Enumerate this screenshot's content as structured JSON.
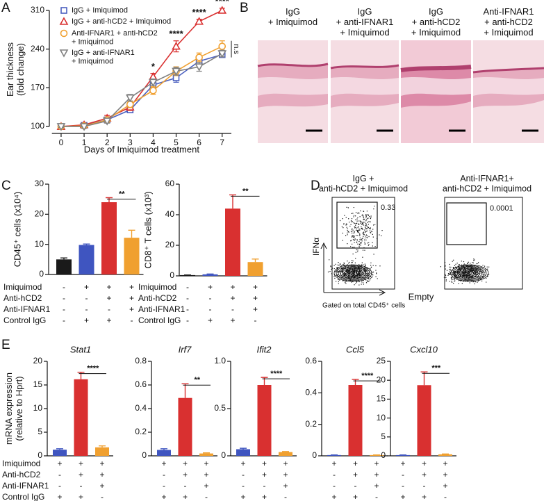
{
  "panel_labels": [
    "A",
    "B",
    "C",
    "D",
    "E"
  ],
  "chart_data": [
    {
      "type": "line",
      "xlabel": "Days of Imiquimod treatment",
      "ylabel": "Ear thickness\n(fold change)",
      "x": [
        0,
        1,
        2,
        3,
        4,
        5,
        6,
        7
      ],
      "xlim": [
        -0.4,
        7.4
      ],
      "xticks": [
        0,
        1,
        2,
        3,
        4,
        5,
        6,
        7
      ],
      "ylim": [
        95,
        315
      ],
      "yticks": [
        100,
        170,
        240,
        310
      ],
      "series": [
        {
          "name": "IgG + Imiquimod",
          "color": "#4a5fbf",
          "marker": "square",
          "values": [
            100,
            102,
            112,
            130,
            175,
            188,
            218,
            230
          ],
          "errors": [
            2,
            3,
            4,
            5,
            6,
            8,
            5,
            5
          ]
        },
        {
          "name": "IgG + anti-hCD2 + Imiquimod",
          "color": "#d93030",
          "marker": "triangle",
          "values": [
            100,
            103,
            115,
            135,
            190,
            245,
            290,
            310
          ],
          "errors": [
            2,
            3,
            5,
            6,
            6,
            10,
            4,
            4
          ]
        },
        {
          "name": "Anti-IFNAR1 + anti-hCD2\n+ Imiquimod",
          "color": "#f0a030",
          "marker": "circle",
          "values": [
            100,
            101,
            112,
            140,
            165,
            200,
            225,
            245
          ],
          "errors": [
            2,
            3,
            4,
            6,
            7,
            8,
            8,
            10
          ]
        },
        {
          "name": "IgG + anti-IFNAR1\n+ Imiquimod",
          "color": "#808080",
          "marker": "triangle-down",
          "values": [
            100,
            100,
            110,
            152,
            180,
            200,
            208,
            232
          ],
          "errors": [
            2,
            3,
            4,
            6,
            6,
            7,
            8,
            6
          ]
        }
      ],
      "annotations": [
        {
          "x": 4,
          "text": "*"
        },
        {
          "x": 5,
          "text": "****"
        },
        {
          "x": 6,
          "text": "****"
        },
        {
          "x": 7,
          "text": "****"
        }
      ],
      "side_annotation": "n.s"
    },
    {
      "type": "bar",
      "ylabel": "CD45⁺ cells (x10⁴)",
      "ylim": [
        0,
        30
      ],
      "yticks": [
        0,
        10,
        20,
        30
      ],
      "values": [
        5,
        9.8,
        24,
        12.2
      ],
      "errors": [
        0.5,
        0.3,
        1.5,
        2.5
      ],
      "colors": [
        "#1a1a1a",
        "#3f55c0",
        "#d93030",
        "#f0a030"
      ],
      "significance": "**",
      "treatment_rows": [
        "Imiquimod",
        "Anti-hCD2",
        "Anti-IFNAR1",
        "Control IgG"
      ],
      "treatment_signs": [
        [
          "-",
          "+",
          "+",
          "+"
        ],
        [
          "-",
          "-",
          "+",
          "+"
        ],
        [
          "-",
          "-",
          "-",
          "+"
        ],
        [
          "-",
          "+",
          "+",
          "-"
        ]
      ]
    },
    {
      "type": "bar",
      "ylabel": "CD8⁺ T cells (x10³)",
      "ylim": [
        0,
        60
      ],
      "yticks": [
        0,
        20,
        40,
        60
      ],
      "values": [
        0.5,
        1,
        44,
        9
      ],
      "errors": [
        0.1,
        0.2,
        9,
        2
      ],
      "colors": [
        "#1a1a1a",
        "#3f55c0",
        "#d93030",
        "#f0a030"
      ],
      "significance": "**",
      "treatment_rows": [
        "Imiquimod",
        "Anti-hCD2",
        "Anti-IFNAR1",
        "Control IgG"
      ],
      "treatment_signs": [
        [
          "-",
          "+",
          "+",
          "+"
        ],
        [
          "-",
          "-",
          "+",
          "+"
        ],
        [
          "-",
          "-",
          "-",
          "+"
        ],
        [
          "-",
          "+",
          "+",
          "-"
        ]
      ]
    },
    {
      "type": "bar",
      "title": "Stat1",
      "ylabel": "mRNA expression\n(relative to Hprt)",
      "ylim": [
        0,
        20
      ],
      "yticks": [
        0,
        5,
        10,
        15,
        20
      ],
      "values": [
        1.3,
        16.2,
        1.8
      ],
      "errors": [
        0.2,
        1.5,
        0.3
      ],
      "colors": [
        "#3f55c0",
        "#d93030",
        "#f0a030"
      ],
      "significance": "****",
      "treatment_rows": [
        "Imiquimod",
        "Anti-hCD2",
        "Anti-IFNAR1",
        "Control IgG"
      ],
      "treatment_signs": [
        [
          "+",
          "+",
          "+"
        ],
        [
          "-",
          "+",
          "+"
        ],
        [
          "-",
          "-",
          "+"
        ],
        [
          "+",
          "+",
          "-"
        ]
      ]
    },
    {
      "type": "bar",
      "title": "Irf7",
      "ylim": [
        0,
        0.8
      ],
      "yticks": [
        0,
        0.2,
        0.4,
        0.6,
        0.8
      ],
      "values": [
        0.05,
        0.49,
        0.02
      ],
      "errors": [
        0.01,
        0.12,
        0.005
      ],
      "colors": [
        "#3f55c0",
        "#d93030",
        "#f0a030"
      ],
      "significance": "**",
      "treatment_signs": [
        [
          "+",
          "+",
          "+"
        ],
        [
          "-",
          "+",
          "+"
        ],
        [
          "-",
          "-",
          "+"
        ],
        [
          "+",
          "+",
          "-"
        ]
      ]
    },
    {
      "type": "bar",
      "title": "Ifit2",
      "ylim": [
        0,
        1
      ],
      "yticks": [
        0,
        0.5,
        {
          "value": 1,
          "label": "1.0"
        }
      ],
      "values": [
        0.07,
        0.75,
        0.04
      ],
      "errors": [
        0.01,
        0.08,
        0.005
      ],
      "colors": [
        "#3f55c0",
        "#d93030",
        "#f0a030"
      ],
      "significance": "****",
      "treatment_signs": [
        [
          "+",
          "+",
          "+"
        ],
        [
          "-",
          "+",
          "+"
        ],
        [
          "-",
          "-",
          "+"
        ],
        [
          "+",
          "+",
          "-"
        ]
      ]
    },
    {
      "type": "bar",
      "title": "Ccl5",
      "ylim": [
        0,
        0.6
      ],
      "yticks": [
        0,
        0.2,
        0.4,
        0.6
      ],
      "values": [
        0.005,
        0.45,
        0.005
      ],
      "errors": [
        0.001,
        0.035,
        0.001
      ],
      "colors": [
        "#3f55c0",
        "#d93030",
        "#f0a030"
      ],
      "significance": "****",
      "treatment_signs": [
        [
          "+",
          "+",
          "+"
        ],
        [
          "-",
          "+",
          "+"
        ],
        [
          "-",
          "-",
          "+"
        ],
        [
          "+",
          "+",
          "-"
        ]
      ]
    },
    {
      "type": "bar",
      "title": "Cxcl10",
      "ylim": [
        0,
        25
      ],
      "yticks": [
        0,
        5,
        10,
        15,
        20,
        25
      ],
      "values": [
        0.2,
        18.7,
        0.4
      ],
      "errors": [
        0.05,
        3.5,
        0.1
      ],
      "colors": [
        "#3f55c0",
        "#d93030",
        "#f0a030"
      ],
      "significance": "***",
      "treatment_signs": [
        [
          "+",
          "+",
          "+"
        ],
        [
          "-",
          "+",
          "+"
        ],
        [
          "-",
          "-",
          "+"
        ],
        [
          "+",
          "+",
          "-"
        ]
      ]
    }
  ],
  "histology": [
    "IgG\n+ Imiquimod",
    "IgG\n+ anti-IFNAR1\n+ Imiquimod",
    "IgG\n+ anti-hCD2\n+ Imiquimod",
    "Anti-IFNAR1\n+ anti-hCD2\n+ Imiquimod"
  ],
  "flow": {
    "ylabel": "IFNα",
    "xlabel": "Empty",
    "note": "Gated on total CD45⁺ cells",
    "plots": [
      {
        "title": "IgG +\nanti-hCD2 + Imiquimod",
        "gate_value": 0.33
      },
      {
        "title": "Anti-IFNAR1+\nanti-hCD2 + Imiquimod",
        "gate_value": 0.0001
      }
    ]
  }
}
